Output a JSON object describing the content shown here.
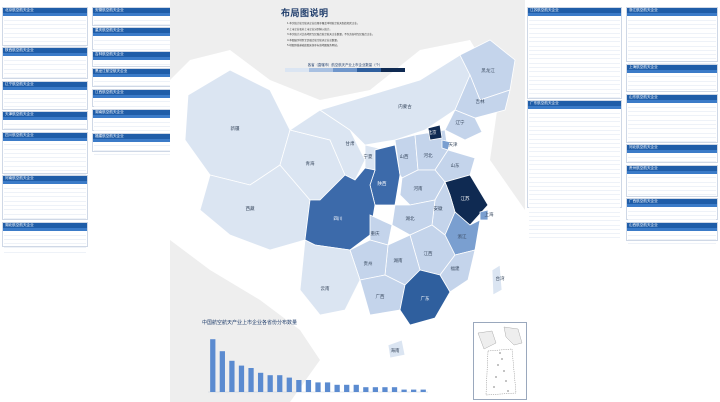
{
  "title": "布局图说明",
  "notes": [
    "1.本次统计航空航天企业仅限于覆盖本地航空航天制造相关企业。",
    "2.上市企业和非上市企业分别纳入统计。",
    "3.本次统计对比各地区军民融合航空航天企业数量，不包含各地军民融合企业。",
    "4.本图展示地区军民融合航空航天企业总数量。",
    "5.地图界线基础底图来源于标准地图服务网站。"
  ],
  "legend": {
    "title": "各省（直辖市）航空航天产业上市企业数量（个）",
    "colors": [
      "#dbe5f2",
      "#a8c0e1",
      "#6f96cb",
      "#2f5f9e",
      "#0f2a52"
    ],
    "labels": [
      "",
      "",
      "",
      "",
      ""
    ]
  },
  "map": {
    "colors": {
      "sea": "#ffffff",
      "land_outside": "#eeeeee",
      "lightest": "#dbe5f2",
      "light": "#c4d4eb",
      "mid": "#7a9fd0",
      "dark": "#3c6aaa",
      "darkest": "#0f2a52",
      "border": "#ffffff"
    },
    "province_labels": [
      "黑龙江",
      "吉林",
      "辽宁",
      "内蒙古",
      "北京",
      "天津",
      "河北",
      "山西",
      "山东",
      "河南",
      "江苏",
      "安徽",
      "上海",
      "浙江",
      "江西",
      "湖北",
      "湖南",
      "福建",
      "台湾",
      "广东",
      "广西",
      "海南",
      "云南",
      "贵州",
      "重庆",
      "四川",
      "陕西",
      "甘肃",
      "宁夏",
      "青海",
      "新疆",
      "西藏"
    ]
  },
  "chart_data": {
    "type": "bar",
    "title": "中国航空航天产业上市企业各省份分布数量",
    "categories": [
      "",
      "",
      "",
      "",
      "",
      "",
      "",
      "",
      "",
      "",
      "",
      "",
      "",
      "",
      "",
      "",
      "",
      "",
      "",
      "",
      "",
      "",
      ""
    ],
    "values": [
      22,
      17,
      13,
      11,
      10,
      8,
      7,
      7,
      6,
      5,
      5,
      4,
      4,
      3,
      3,
      3,
      2,
      2,
      2,
      2,
      1,
      1,
      1
    ],
    "ylim": [
      0,
      25
    ],
    "color": "#5b8bd0"
  },
  "left_panels": [
    {
      "title": "北京航空航天企业",
      "rows": 9
    },
    {
      "title": "陕西航空航天企业",
      "rows": 7
    },
    {
      "title": "辽宁航空航天企业",
      "rows": 6
    },
    {
      "title": "天津航空航天企业",
      "rows": 3
    },
    {
      "title": "四川航空航天企业",
      "rows": 10
    },
    {
      "title": "河南航空航天企业",
      "rows": 11
    },
    {
      "title": "湖北航空航天企业",
      "rows": 5
    }
  ],
  "mid_panels": [
    {
      "title": "安徽航空航天企业",
      "rows": 3
    },
    {
      "title": "重庆航空航天企业",
      "rows": 4
    },
    {
      "title": "吉林航空航天企业",
      "rows": 2
    },
    {
      "title": "黑龙江航空航天企业",
      "rows": 3
    },
    {
      "title": "江西航空航天企业",
      "rows": 3
    },
    {
      "title": "湖南航空航天企业",
      "rows": 4
    },
    {
      "title": "福建航空航天企业",
      "rows": 3
    }
  ],
  "right_panels": [
    {
      "title": "江苏航空航天企业",
      "rows": 25
    },
    {
      "title": "广东航空航天企业",
      "rows": 30
    }
  ],
  "far_right_panels": [
    {
      "title": "浙江航空航天企业",
      "rows": 14
    },
    {
      "title": "上海航空航天企业",
      "rows": 6
    },
    {
      "title": "山东航空航天企业",
      "rows": 12
    },
    {
      "title": "河北航空航天企业",
      "rows": 3
    },
    {
      "title": "贵州航空航天企业",
      "rows": 7
    },
    {
      "title": "广西航空航天企业",
      "rows": 4
    },
    {
      "title": "山西航空航天企业",
      "rows": 3
    }
  ]
}
